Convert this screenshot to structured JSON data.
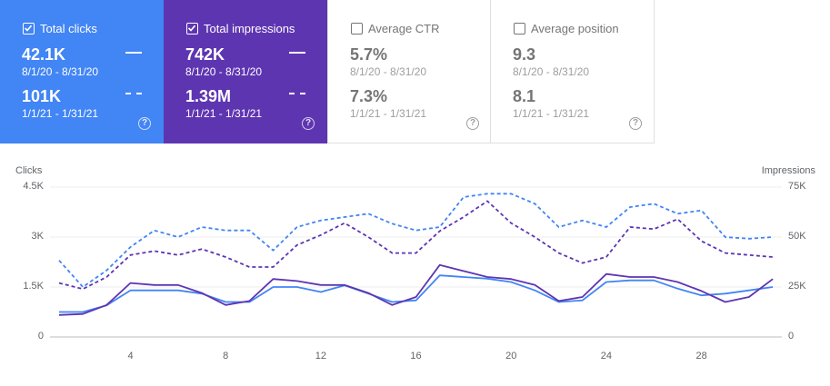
{
  "cards": [
    {
      "name": "Total clicks",
      "checked": true,
      "value1": "42.1K",
      "date1": "8/1/20 - 8/31/20",
      "value2": "101K",
      "date2": "1/1/21 - 1/31/21"
    },
    {
      "name": "Total impressions",
      "checked": true,
      "value1": "742K",
      "date1": "8/1/20 - 8/31/20",
      "value2": "1.39M",
      "date2": "1/1/21 - 1/31/21"
    },
    {
      "name": "Average CTR",
      "checked": false,
      "value1": "5.7%",
      "date1": "8/1/20 - 8/31/20",
      "value2": "7.3%",
      "date2": "1/1/21 - 1/31/21"
    },
    {
      "name": "Average position",
      "checked": false,
      "value1": "9.3",
      "date1": "8/1/20 - 8/31/20",
      "value2": "8.1",
      "date2": "1/1/21 - 1/31/21"
    }
  ],
  "help_glyph": "?",
  "colors": {
    "clicks": "#4285f4",
    "impressions": "#5e35b1"
  },
  "chart_data": {
    "type": "line",
    "ylabel_left": "Clicks",
    "ylabel_right": "Impressions",
    "y_left_ticks": [
      "4.5K",
      "3K",
      "1.5K",
      "0"
    ],
    "y_right_ticks": [
      "75K",
      "50K",
      "25K",
      "0"
    ],
    "ylim_left": [
      0,
      4500
    ],
    "ylim_right": [
      0,
      75000
    ],
    "x_ticks": [
      "4",
      "8",
      "12",
      "16",
      "20",
      "24",
      "28"
    ],
    "x": [
      1,
      2,
      3,
      4,
      5,
      6,
      7,
      8,
      9,
      10,
      11,
      12,
      13,
      14,
      15,
      16,
      17,
      18,
      19,
      20,
      21,
      22,
      23,
      24,
      25,
      26,
      27,
      28,
      29,
      30,
      31
    ],
    "series": [
      {
        "name": "Clicks 1/1/21 - 1/31/21",
        "axis": "left",
        "dashed": true,
        "color": "#4285f4",
        "values": [
          2300,
          1500,
          2000,
          2700,
          3200,
          3000,
          3300,
          3200,
          3200,
          2600,
          3300,
          3500,
          3600,
          3700,
          3400,
          3200,
          3300,
          4200,
          4300,
          4300,
          4000,
          3300,
          3500,
          3300,
          3900,
          4000,
          3700,
          3800,
          3000,
          2950,
          3000
        ]
      },
      {
        "name": "Impressions 1/1/21 - 1/31/21",
        "axis": "right",
        "dashed": true,
        "color": "#5e35b1",
        "values": [
          27000,
          24000,
          30000,
          41000,
          43000,
          41000,
          44000,
          40000,
          35000,
          35000,
          46000,
          51000,
          57000,
          50000,
          42000,
          42000,
          53000,
          60000,
          68000,
          57000,
          50000,
          42000,
          37000,
          40000,
          55000,
          54000,
          59000,
          48000,
          42000,
          41000,
          40000
        ]
      },
      {
        "name": "Clicks 8/1/20 - 8/31/20",
        "axis": "left",
        "dashed": false,
        "color": "#4285f4",
        "values": [
          750,
          750,
          950,
          1400,
          1400,
          1400,
          1300,
          1050,
          1050,
          1500,
          1500,
          1350,
          1550,
          1300,
          1050,
          1100,
          1850,
          1800,
          1750,
          1650,
          1400,
          1050,
          1100,
          1650,
          1700,
          1700,
          1450,
          1250,
          1300,
          1400,
          1500
        ]
      },
      {
        "name": "Impressions 8/1/20 - 8/31/20",
        "axis": "right",
        "dashed": false,
        "color": "#5e35b1",
        "values": [
          11000,
          11500,
          16000,
          27000,
          26000,
          26000,
          22000,
          16000,
          18000,
          29000,
          28000,
          26000,
          26000,
          22000,
          16000,
          20000,
          36000,
          33000,
          30000,
          29000,
          26000,
          18000,
          20000,
          31500,
          30000,
          30000,
          27500,
          23000,
          17500,
          20000,
          29000
        ]
      }
    ]
  }
}
